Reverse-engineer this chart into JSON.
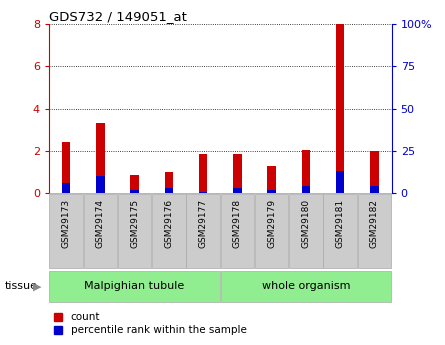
{
  "title": "GDS732 / 149051_at",
  "samples": [
    "GSM29173",
    "GSM29174",
    "GSM29175",
    "GSM29176",
    "GSM29177",
    "GSM29178",
    "GSM29179",
    "GSM29180",
    "GSM29181",
    "GSM29182"
  ],
  "count_values": [
    2.4,
    3.3,
    0.85,
    1.0,
    1.85,
    1.85,
    1.3,
    2.05,
    8.0,
    2.0
  ],
  "percentile_values": [
    6.0,
    10.0,
    2.0,
    3.0,
    1.0,
    3.0,
    2.0,
    4.0,
    13.0,
    4.0
  ],
  "count_color": "#cc0000",
  "percentile_color": "#0000cc",
  "ylim_left": [
    0,
    8
  ],
  "ylim_right": [
    0,
    100
  ],
  "yticks_left": [
    0,
    2,
    4,
    6,
    8
  ],
  "ytick_labels_left": [
    "0",
    "2",
    "4",
    "6",
    "8"
  ],
  "yticks_right": [
    0,
    25,
    50,
    75,
    100
  ],
  "ytick_labels_right": [
    "0",
    "25",
    "50",
    "75",
    "100%"
  ],
  "tissue_groups": {
    "Malpighian tubule": [
      0,
      1,
      2,
      3,
      4
    ],
    "whole organism": [
      5,
      6,
      7,
      8,
      9
    ]
  },
  "tissue_color": "#90ee90",
  "tissue_label": "tissue",
  "bar_width": 0.25,
  "legend_count": "count",
  "legend_percentile": "percentile rank within the sample",
  "bg_color": "#ffffff",
  "tick_box_color": "#cccccc",
  "left_tick_color": "#cc0000",
  "right_tick_color": "#0000cc"
}
